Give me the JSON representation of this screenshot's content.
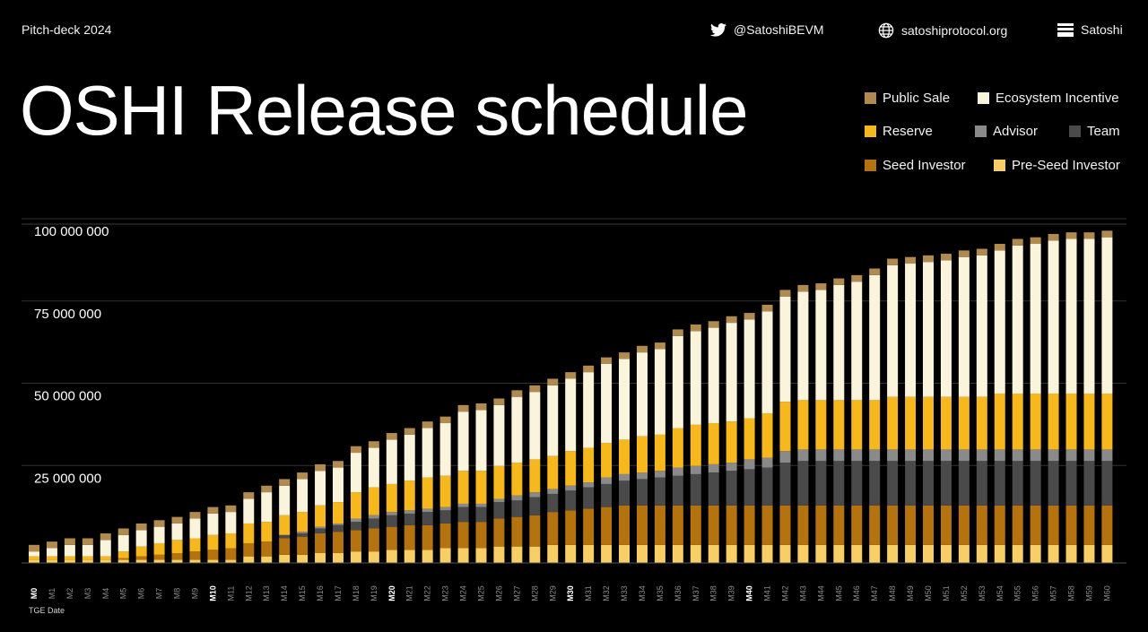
{
  "header": {
    "pitch_label": "Pitch-deck 2024",
    "twitter_handle": "@SatoshiBEVM",
    "website": "satoshiprotocol.org",
    "brand": "Satoshi",
    "title": "OSHI Release schedule"
  },
  "icons": {
    "twitter": "twitter-icon",
    "globe": "globe-icon",
    "brand": "satoshi-logo-icon"
  },
  "colors": {
    "public_sale": "#b08a4f",
    "ecosystem_incentive": "#fbf4dc",
    "reserve": "#f7b81e",
    "advisor": "#8a8a8a",
    "team": "#4a4a4a",
    "seed_investor": "#b5730f",
    "pre_seed_investor": "#f7cf66"
  },
  "chart_data": {
    "type": "bar",
    "stacked": true,
    "title": "OSHI Release schedule",
    "x_note": "TGE Date",
    "categories": [
      "M0",
      "M1",
      "M2",
      "M3",
      "M4",
      "M5",
      "M6",
      "M7",
      "M8",
      "M9",
      "M10",
      "M11",
      "M12",
      "M13",
      "M14",
      "M15",
      "M16",
      "M17",
      "M18",
      "M19",
      "M20",
      "M21",
      "M22",
      "M23",
      "M24",
      "M25",
      "M26",
      "M27",
      "M28",
      "M29",
      "M30",
      "M31",
      "M32",
      "M33",
      "M34",
      "M35",
      "M36",
      "M37",
      "M38",
      "M39",
      "M40",
      "M41",
      "M42",
      "M43",
      "M44",
      "M45",
      "M46",
      "M47",
      "M48",
      "M49",
      "M50",
      "M51",
      "M52",
      "M53",
      "M54",
      "M55",
      "M56",
      "M57",
      "M58",
      "M59",
      "M60"
    ],
    "highlight_categories": [
      "M0",
      "M10",
      "M20",
      "M30",
      "M40"
    ],
    "yticks": [
      25000000,
      50000000,
      75000000,
      100000000
    ],
    "ytick_labels": [
      "25 000 000",
      "50 000 000",
      "75 000 000",
      "100 000 000"
    ],
    "ylim": [
      0,
      103000000
    ],
    "grid": true,
    "legend": [
      "Public Sale",
      "Ecosystem Incentive",
      "Reserve",
      "Advisor",
      "Team",
      "Seed Investor",
      "Pre-Seed Investor"
    ],
    "series": [
      {
        "name": "Pre-Seed Investor",
        "values": [
          1000000,
          1000000,
          1000000,
          1000000,
          1000000,
          1000000,
          1000000,
          1000000,
          1000000,
          1000000,
          1000000,
          1000000,
          2000000,
          2000000,
          2500000,
          2500000,
          3000000,
          3000000,
          3500000,
          3500000,
          4000000,
          4000000,
          4000000,
          4500000,
          4500000,
          4500000,
          5000000,
          5000000,
          5000000,
          5500000,
          5500000,
          5500000,
          5500000,
          5500000,
          5500000,
          5500000,
          5500000,
          5500000,
          5500000,
          5500000,
          5500000,
          5500000,
          5500000,
          5500000,
          5500000,
          5500000,
          5500000,
          5500000,
          5500000,
          5500000,
          5500000,
          5500000,
          5500000,
          5500000,
          5500000,
          5500000,
          5500000,
          5500000,
          5500000,
          5500000,
          5500000
        ]
      },
      {
        "name": "Seed Investor",
        "values": [
          0,
          0,
          0,
          0,
          0,
          500000,
          1000000,
          1500000,
          2000000,
          2500000,
          3000000,
          3500000,
          4000000,
          4500000,
          5000000,
          5500000,
          6000000,
          6500000,
          6500000,
          7000000,
          7000000,
          7500000,
          7500000,
          7500000,
          8000000,
          8000000,
          8500000,
          9000000,
          9500000,
          10000000,
          10500000,
          11000000,
          11500000,
          12000000,
          12000000,
          12000000,
          12000000,
          12000000,
          12000000,
          12000000,
          12000000,
          12000000,
          12000000,
          12000000,
          12000000,
          12000000,
          12000000,
          12000000,
          12000000,
          12000000,
          12000000,
          12000000,
          12000000,
          12000000,
          12000000,
          12000000,
          12000000,
          12000000,
          12000000,
          12000000,
          12000000
        ]
      },
      {
        "name": "Team",
        "values": [
          0,
          0,
          0,
          0,
          0,
          0,
          0,
          0,
          0,
          0,
          0,
          0,
          0,
          0,
          1000000,
          1000000,
          1500000,
          2000000,
          2500000,
          3000000,
          3500000,
          3500000,
          4000000,
          4000000,
          4500000,
          4500000,
          5000000,
          5000000,
          5500000,
          5500000,
          6000000,
          6500000,
          7000000,
          7500000,
          8000000,
          8500000,
          9000000,
          9500000,
          10000000,
          10500000,
          11000000,
          11500000,
          13000000,
          13500000,
          13500000,
          13500000,
          13500000,
          13500000,
          13500000,
          13500000,
          13500000,
          13500000,
          13500000,
          13500000,
          13500000,
          13500000,
          13500000,
          13500000,
          13500000,
          13500000,
          13500000
        ]
      },
      {
        "name": "Advisor",
        "values": [
          0,
          0,
          0,
          0,
          0,
          0,
          0,
          0,
          0,
          0,
          0,
          0,
          0,
          0,
          0,
          500000,
          500000,
          500000,
          1000000,
          1000000,
          1000000,
          1000000,
          1000000,
          1000000,
          1000000,
          1000000,
          1000000,
          1500000,
          1500000,
          1500000,
          1500000,
          1500000,
          2000000,
          2000000,
          2000000,
          2000000,
          2500000,
          2500000,
          2500000,
          2500000,
          3000000,
          3000000,
          3500000,
          3500000,
          3500000,
          3500000,
          3500000,
          3500000,
          3500000,
          3500000,
          3500000,
          3500000,
          3500000,
          3500000,
          3500000,
          3500000,
          3500000,
          3500000,
          3500000,
          3500000,
          3500000
        ]
      },
      {
        "name": "Reserve",
        "values": [
          1000000,
          1000000,
          1000000,
          1000000,
          1000000,
          2000000,
          3000000,
          3500000,
          4000000,
          4000000,
          4500000,
          4500000,
          6000000,
          6000000,
          6000000,
          6000000,
          6500000,
          6500000,
          8000000,
          8500000,
          8500000,
          9000000,
          9500000,
          9500000,
          10000000,
          10000000,
          10000000,
          10000000,
          10000000,
          10000000,
          10500000,
          10500000,
          10500000,
          10500000,
          11000000,
          11000000,
          12000000,
          12500000,
          12500000,
          12500000,
          12500000,
          13500000,
          15000000,
          15000000,
          15000000,
          15000000,
          15000000,
          15000000,
          16000000,
          16000000,
          16000000,
          16000000,
          16000000,
          16000000,
          17000000,
          17000000,
          17000000,
          17000000,
          17000000,
          17000000,
          17000000
        ]
      },
      {
        "name": "Ecosystem Incentive",
        "values": [
          1500000,
          2500000,
          3500000,
          3500000,
          5000000,
          5000000,
          5000000,
          5000000,
          5000000,
          6000000,
          6500000,
          6500000,
          7500000,
          9000000,
          9000000,
          10000000,
          10500000,
          10500000,
          12000000,
          12000000,
          13500000,
          14000000,
          15000000,
          16000000,
          18000000,
          18500000,
          18500000,
          20000000,
          20500000,
          21500000,
          22000000,
          23000000,
          24000000,
          24500000,
          25500000,
          26000000,
          28000000,
          28500000,
          29000000,
          30000000,
          30000000,
          31000000,
          32000000,
          33000000,
          33500000,
          35000000,
          36000000,
          38000000,
          40000000,
          40500000,
          41000000,
          41500000,
          42500000,
          43000000,
          43500000,
          45000000,
          45500000,
          46500000,
          47000000,
          47000000,
          47500000
        ]
      },
      {
        "name": "Public Sale",
        "values": [
          2000000,
          2000000,
          2000000,
          2000000,
          2000000,
          2000000,
          2000000,
          2000000,
          2000000,
          2000000,
          2000000,
          2000000,
          2000000,
          2000000,
          2000000,
          2000000,
          2000000,
          2000000,
          2000000,
          2000000,
          2000000,
          2000000,
          2000000,
          2000000,
          2000000,
          2000000,
          2000000,
          2000000,
          2000000,
          2000000,
          2000000,
          2000000,
          2000000,
          2000000,
          2000000,
          2000000,
          2000000,
          2000000,
          2000000,
          2000000,
          2000000,
          2000000,
          2000000,
          2000000,
          2000000,
          2000000,
          2000000,
          2000000,
          2000000,
          2000000,
          2000000,
          2000000,
          2000000,
          2000000,
          2000000,
          2000000,
          2000000,
          2000000,
          2000000,
          2000000,
          2000000
        ]
      }
    ]
  }
}
